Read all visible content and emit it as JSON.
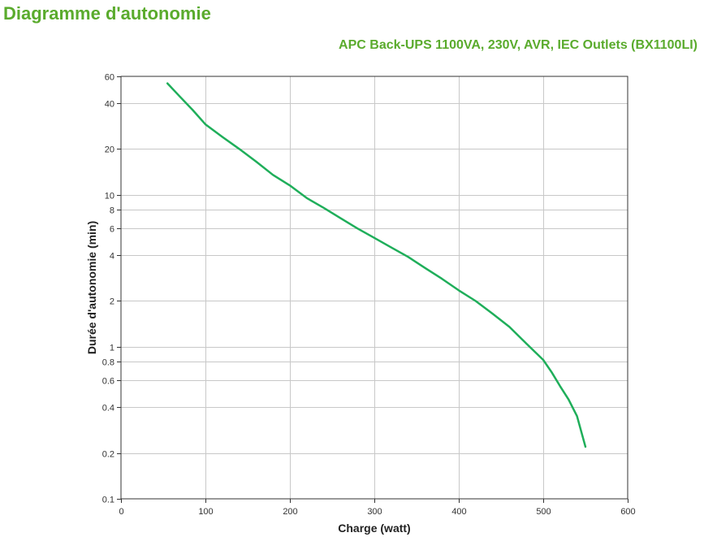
{
  "page": {
    "title": "Diagramme d'autonomie",
    "subtitle": "APC Back-UPS 1100VA, 230V, AVR, IEC Outlets (BX1100LI)"
  },
  "colors": {
    "series": "#1fae5a",
    "title": "#5aab2d",
    "grid": "#c8c8c8",
    "axis": "#333333"
  },
  "chart_data": {
    "type": "line",
    "title": "",
    "xlabel": "Charge (watt)",
    "ylabel": "Durée d'autonomie (min)",
    "xlim": [
      0,
      600
    ],
    "ylim": [
      0.1,
      60
    ],
    "y_scale": "log",
    "grid": true,
    "x_ticks": [
      0,
      100,
      200,
      300,
      400,
      500,
      600
    ],
    "x_tick_labels": [
      "0",
      "100",
      "200",
      "300",
      "400",
      "500",
      "600"
    ],
    "y_ticks": [
      0.1,
      0.2,
      0.4,
      0.6,
      0.8,
      1,
      2,
      4,
      6,
      8,
      10,
      20,
      40,
      60
    ],
    "y_tick_labels": [
      "0.1",
      "0.2",
      "0.4",
      "0.6",
      "0.8",
      "1",
      "2",
      "4",
      "6",
      "8",
      "10",
      "20",
      "40",
      "60"
    ],
    "series": [
      {
        "values_x": [
          55,
          70,
          85,
          100,
          120,
          140,
          160,
          180,
          200,
          220,
          240,
          260,
          280,
          300,
          320,
          340,
          360,
          380,
          400,
          420,
          440,
          460,
          480,
          500,
          510,
          520,
          530,
          540,
          550
        ],
        "values_y": [
          54,
          44,
          36,
          29,
          24,
          20,
          16.5,
          13.5,
          11.5,
          9.5,
          8.2,
          7.0,
          6.0,
          5.2,
          4.5,
          3.9,
          3.3,
          2.8,
          2.35,
          2.0,
          1.65,
          1.35,
          1.05,
          0.82,
          0.68,
          0.55,
          0.45,
          0.35,
          0.22
        ]
      }
    ]
  }
}
